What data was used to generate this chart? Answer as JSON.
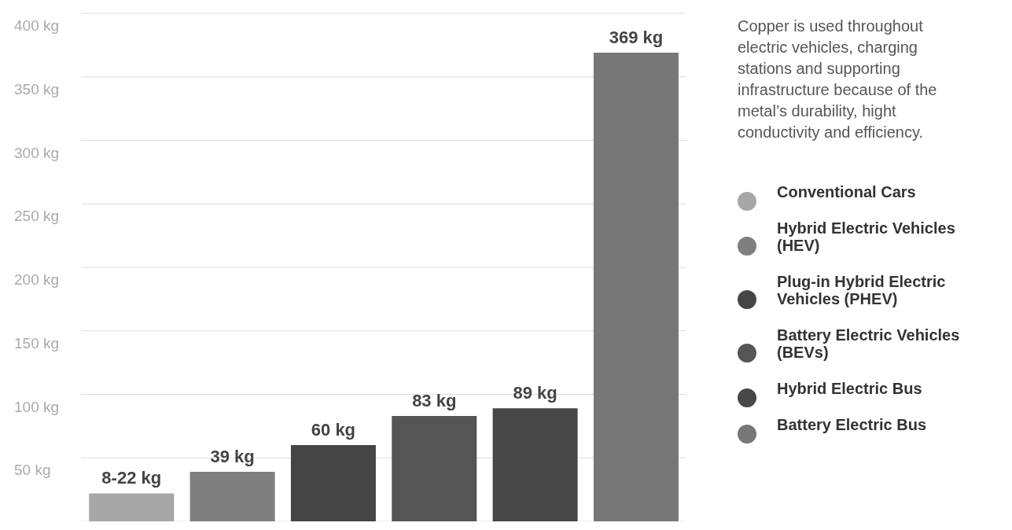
{
  "chart_data": {
    "type": "bar",
    "stacked": true,
    "categories": [
      null,
      null,
      null,
      null,
      null,
      null
    ],
    "series": [
      {
        "name": "Conventional Cars",
        "color": "#a6a6a6",
        "values": [
          22,
          null,
          null,
          null,
          null,
          null
        ],
        "value_labels": [
          "8-22 kg",
          null,
          null,
          null,
          null,
          null
        ]
      },
      {
        "name": "Hybrid Electric Vehicles (HEV)",
        "color": "#7f7f7f",
        "values": [
          null,
          39,
          null,
          null,
          null,
          null
        ],
        "value_labels": [
          null,
          "39 kg",
          null,
          null,
          null,
          null
        ]
      },
      {
        "name": "Plug-in Hybrid Electric Vehicles (PHEV)",
        "color": "#454545",
        "values": [
          null,
          null,
          60,
          null,
          null,
          null
        ],
        "value_labels": [
          null,
          null,
          "60 kg",
          null,
          null,
          null
        ]
      },
      {
        "name": "Battery Electric Vehicles (BEVs)",
        "color": "#555555",
        "values": [
          null,
          null,
          null,
          83,
          null,
          null
        ],
        "value_labels": [
          null,
          null,
          null,
          "83 kg",
          null,
          null
        ]
      },
      {
        "name": "Hybrid Electric Bus",
        "color": "#474747",
        "values": [
          null,
          null,
          null,
          null,
          89,
          null
        ],
        "value_labels": [
          null,
          null,
          null,
          null,
          "89 kg",
          null
        ]
      },
      {
        "name": "Battery Electric Bus",
        "color": "#777777",
        "values": [
          null,
          null,
          null,
          null,
          null,
          369
        ],
        "value_labels": [
          null,
          null,
          null,
          null,
          null,
          "369 kg"
        ]
      }
    ],
    "ylim": [
      0,
      400
    ],
    "yticks": [
      {
        "value": 50,
        "label": "50 kg"
      },
      {
        "value": 100,
        "label": "100 kg"
      },
      {
        "value": 150,
        "label": "150 kg"
      },
      {
        "value": 200,
        "label": "200 kg"
      },
      {
        "value": 250,
        "label": "250 kg"
      },
      {
        "value": 300,
        "label": "300 kg"
      },
      {
        "value": 350,
        "label": "350 kg"
      },
      {
        "value": 400,
        "label": "400 kg"
      }
    ],
    "tick_labels": "y",
    "grid": "y",
    "legend": "right",
    "annotations": [
      "Copper is used throughout electric vehicles, charging stations and supporting infrastructure because of the metal’s durability, hight conductivity and efficiency."
    ]
  }
}
